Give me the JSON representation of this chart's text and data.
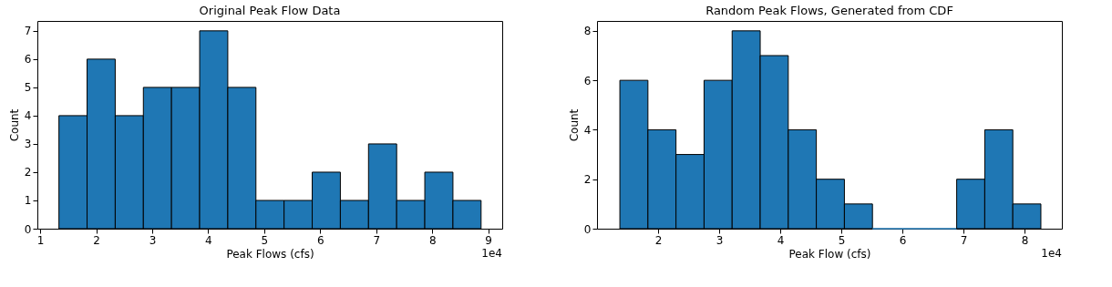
{
  "chart_data": [
    {
      "type": "histogram",
      "title": "Original Peak Flow Data",
      "xlabel": "Peak Flows (cfs)",
      "ylabel": "Count",
      "color": "#1f77b4",
      "bins": [
        1.335,
        1.8375,
        2.34,
        2.8425,
        3.345,
        3.8475,
        4.35,
        4.8525,
        5.355,
        5.8575,
        6.36,
        6.8625,
        7.365,
        7.8675,
        8.37,
        8.8725
      ],
      "values": [
        4,
        6,
        4,
        5,
        5,
        7,
        5,
        1,
        1,
        2,
        1,
        3,
        1,
        2,
        1
      ],
      "xlim": [
        0.95,
        9.25
      ],
      "xticks": [
        1,
        2,
        3,
        4,
        5,
        6,
        7,
        8,
        9
      ],
      "ylim": [
        0,
        7.35
      ],
      "yticks": [
        0,
        1,
        2,
        3,
        4,
        5,
        6,
        7
      ],
      "annotations": [
        "1e4"
      ],
      "grid": false
    },
    {
      "type": "histogram",
      "title": "Random Peak Flows, Generated from CDF",
      "xlabel": "Peak Flow (cfs)",
      "ylabel": "Count",
      "color": "#1f77b4",
      "bins": [
        1.374,
        1.8335,
        2.293,
        2.7525,
        3.212,
        3.6715,
        4.131,
        4.5905,
        5.05,
        5.5095,
        5.969,
        6.4285,
        6.888,
        7.3475,
        7.807,
        8.2665
      ],
      "values": [
        6,
        4,
        3,
        6,
        8,
        7,
        4,
        2,
        1,
        0,
        0,
        0,
        2,
        4,
        1
      ],
      "xlim": [
        1.0,
        8.61
      ],
      "xticks": [
        2,
        3,
        4,
        5,
        6,
        7,
        8
      ],
      "ylim": [
        0,
        8.4
      ],
      "yticks": [
        0,
        2,
        4,
        6,
        8
      ],
      "annotations": [
        "1e4"
      ],
      "grid": false
    }
  ]
}
